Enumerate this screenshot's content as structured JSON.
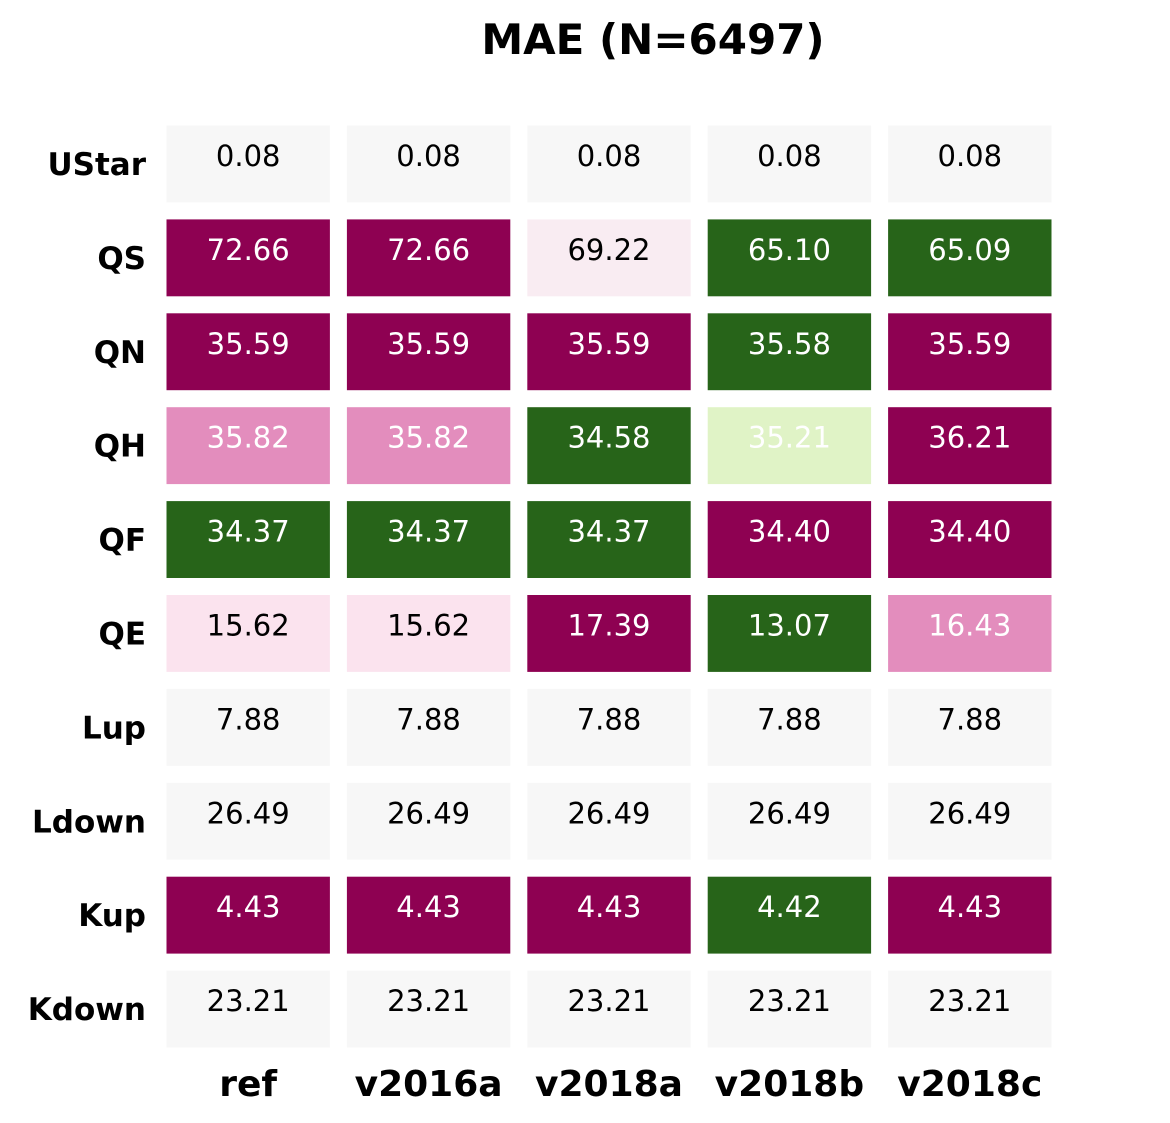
{
  "chart_data": {
    "type": "heatmap",
    "title": "MAE (N=6497)",
    "columns": [
      "ref",
      "v2016a",
      "v2018a",
      "v2018b",
      "v2018c"
    ],
    "rows": [
      "UStar",
      "QS",
      "QN",
      "QH",
      "QF",
      "QE",
      "Lup",
      "Ldown",
      "Kup",
      "Kdown"
    ],
    "labels": [
      [
        "0.08",
        "0.08",
        "0.08",
        "0.08",
        "0.08"
      ],
      [
        "72.66",
        "72.66",
        "69.22",
        "65.10",
        "65.09"
      ],
      [
        "35.59",
        "35.59",
        "35.59",
        "35.58",
        "35.59"
      ],
      [
        "35.82",
        "35.82",
        "34.58",
        "35.21",
        "36.21"
      ],
      [
        "34.37",
        "34.37",
        "34.37",
        "34.40",
        "34.40"
      ],
      [
        "15.62",
        "15.62",
        "17.39",
        "13.07",
        "16.43"
      ],
      [
        "7.88",
        "7.88",
        "7.88",
        "7.88",
        "7.88"
      ],
      [
        "26.49",
        "26.49",
        "26.49",
        "26.49",
        "26.49"
      ],
      [
        "4.43",
        "4.43",
        "4.43",
        "4.42",
        "4.43"
      ],
      [
        "23.21",
        "23.21",
        "23.21",
        "23.21",
        "23.21"
      ]
    ],
    "cell_colors": [
      [
        "#f7f7f7",
        "#f7f7f7",
        "#f7f7f7",
        "#f7f7f7",
        "#f7f7f7"
      ],
      [
        "#8e0152",
        "#8e0152",
        "#f9ecf2",
        "#276419",
        "#276419"
      ],
      [
        "#8e0152",
        "#8e0152",
        "#8e0152",
        "#276419",
        "#8e0152"
      ],
      [
        "#e38dbd",
        "#e38dbd",
        "#276419",
        "#e0f3c6",
        "#8e0152"
      ],
      [
        "#276419",
        "#276419",
        "#276419",
        "#8e0152",
        "#8e0152"
      ],
      [
        "#fbe3ee",
        "#fbe3ee",
        "#8e0152",
        "#276419",
        "#e38dbd"
      ],
      [
        "#f7f7f7",
        "#f7f7f7",
        "#f7f7f7",
        "#f7f7f7",
        "#f7f7f7"
      ],
      [
        "#f7f7f7",
        "#f7f7f7",
        "#f7f7f7",
        "#f7f7f7",
        "#f7f7f7"
      ],
      [
        "#8e0152",
        "#8e0152",
        "#8e0152",
        "#276419",
        "#8e0152"
      ],
      [
        "#f7f7f7",
        "#f7f7f7",
        "#f7f7f7",
        "#f7f7f7",
        "#f7f7f7"
      ]
    ],
    "text_colors": [
      [
        "#000000",
        "#000000",
        "#000000",
        "#000000",
        "#000000"
      ],
      [
        "#ffffff",
        "#ffffff",
        "#000000",
        "#ffffff",
        "#ffffff"
      ],
      [
        "#ffffff",
        "#ffffff",
        "#ffffff",
        "#ffffff",
        "#ffffff"
      ],
      [
        "#ffffff",
        "#ffffff",
        "#ffffff",
        "#ffffff",
        "#ffffff"
      ],
      [
        "#ffffff",
        "#ffffff",
        "#ffffff",
        "#ffffff",
        "#ffffff"
      ],
      [
        "#000000",
        "#000000",
        "#ffffff",
        "#ffffff",
        "#ffffff"
      ],
      [
        "#000000",
        "#000000",
        "#000000",
        "#000000",
        "#000000"
      ],
      [
        "#000000",
        "#000000",
        "#000000",
        "#000000",
        "#000000"
      ],
      [
        "#ffffff",
        "#ffffff",
        "#ffffff",
        "#ffffff",
        "#ffffff"
      ],
      [
        "#000000",
        "#000000",
        "#000000",
        "#000000",
        "#000000"
      ]
    ],
    "colormap": "PiYG",
    "legend": "none",
    "grid": false
  }
}
